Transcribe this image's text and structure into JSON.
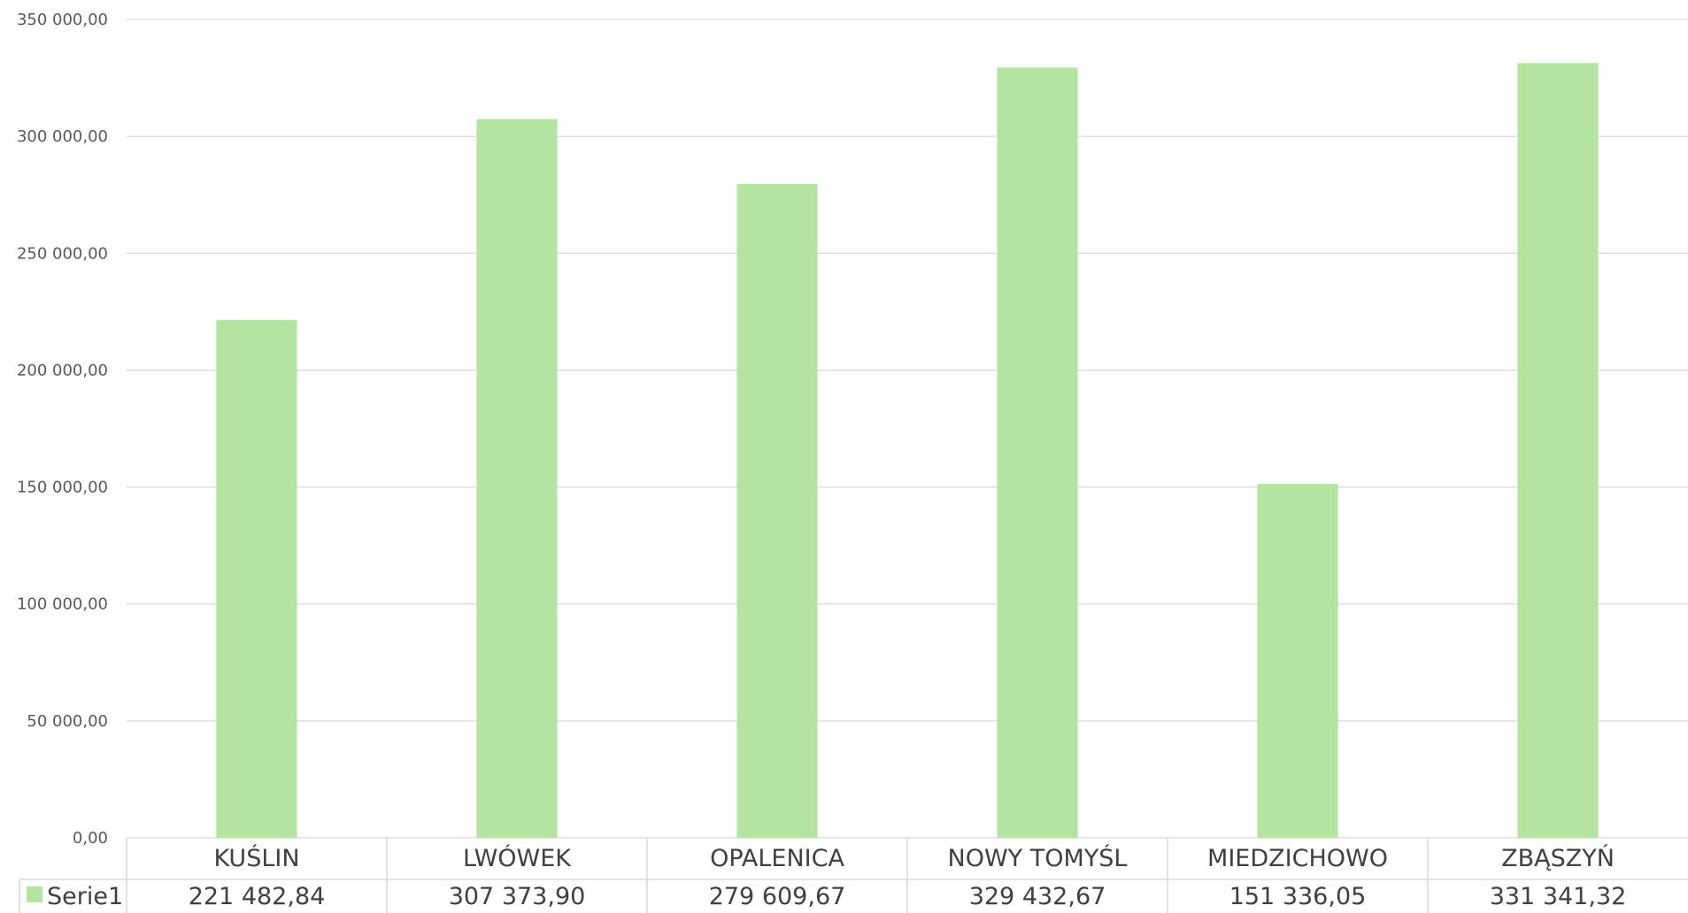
{
  "chart_data": {
    "type": "bar",
    "title": "",
    "categories": [
      "KUŚLIN",
      "LWÓWEK",
      "OPALENICA",
      "NOWY TOMYŚL",
      "MIEDZICHOWO",
      "ZBĄSZYŃ"
    ],
    "series": [
      {
        "name": "Serie1",
        "values": [
          221482.84,
          307373.9,
          279609.67,
          329432.67,
          151336.05,
          331341.32
        ],
        "value_labels": [
          "221 482,84",
          "307 373,90",
          "279 609,67",
          "329 432,67",
          "151 336,05",
          "331 341,32"
        ],
        "color": "#b3e5a1"
      }
    ],
    "ylim": [
      0,
      350000
    ],
    "y_ticks": [
      0,
      50000,
      100000,
      150000,
      200000,
      250000,
      300000,
      350000
    ],
    "y_tick_labels": [
      "0,00",
      "50 000,00",
      "100 000,00",
      "150 000,00",
      "200 000,00",
      "250 000,00",
      "300 000,00",
      "350 000,00"
    ],
    "grid": true,
    "legend_placement": "data-table",
    "gridline_color": "#d9d9d9",
    "table_border_color": "#d9d9d9"
  }
}
